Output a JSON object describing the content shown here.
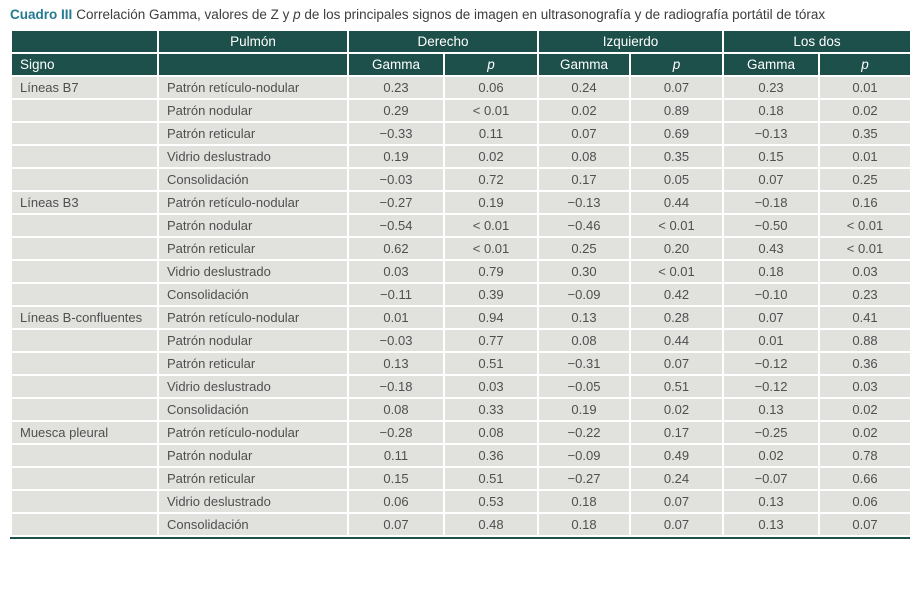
{
  "title": {
    "label": "Cuadro III",
    "pre": "Correlación Gamma, valores de Z y ",
    "italic": "p",
    "post": " de los principales signos de imagen en ultrasonografía y de radiografía portátil de tórax"
  },
  "colors": {
    "accent": "#247a91",
    "header_bg": "#1d504a",
    "row_bg": "#e1e2de",
    "body_text": "#4f4f4f"
  },
  "chart_data": {
    "type": "table",
    "header_top": [
      "",
      "Pulmón",
      "Derecho",
      "Izquierdo",
      "Los dos"
    ],
    "header_sub": [
      "Signo",
      "",
      "Gamma",
      "p",
      "Gamma",
      "p",
      "Gamma",
      "p"
    ],
    "groups": [
      {
        "sign": "Líneas B7",
        "rows": [
          {
            "pattern": "Patrón retículo-nodular",
            "values": [
              "0.23",
              "0.06",
              "0.24",
              "0.07",
              "0.23",
              "0.01"
            ]
          },
          {
            "pattern": "Patrón nodular",
            "values": [
              "0.29",
              "< 0.01",
              "0.02",
              "0.89",
              "0.18",
              "0.02"
            ]
          },
          {
            "pattern": "Patrón reticular",
            "values": [
              "−0.33",
              "0.11",
              "0.07",
              "0.69",
              "−0.13",
              "0.35"
            ]
          },
          {
            "pattern": "Vidrio deslustrado",
            "values": [
              "0.19",
              "0.02",
              "0.08",
              "0.35",
              "0.15",
              "0.01"
            ]
          },
          {
            "pattern": "Consolidación",
            "values": [
              "−0.03",
              "0.72",
              "0.17",
              "0.05",
              "0.07",
              "0.25"
            ]
          }
        ]
      },
      {
        "sign": "Líneas B3",
        "rows": [
          {
            "pattern": "Patrón retículo-nodular",
            "values": [
              "−0.27",
              "0.19",
              "−0.13",
              "0.44",
              "−0.18",
              "0.16"
            ]
          },
          {
            "pattern": "Patrón nodular",
            "values": [
              "−0.54",
              "< 0.01",
              "−0.46",
              "< 0.01",
              "−0.50",
              "< 0.01"
            ]
          },
          {
            "pattern": "Patrón reticular",
            "values": [
              "0.62",
              "< 0.01",
              "0.25",
              "0.20",
              "0.43",
              "< 0.01"
            ]
          },
          {
            "pattern": "Vidrio deslustrado",
            "values": [
              "0.03",
              "0.79",
              "0.30",
              "< 0.01",
              "0.18",
              "0.03"
            ]
          },
          {
            "pattern": "Consolidación",
            "values": [
              "−0.11",
              "0.39",
              "−0.09",
              "0.42",
              "−0.10",
              "0.23"
            ]
          }
        ]
      },
      {
        "sign": "Líneas B-confluentes",
        "rows": [
          {
            "pattern": "Patrón retículo-nodular",
            "values": [
              "0.01",
              "0.94",
              "0.13",
              "0.28",
              "0.07",
              "0.41"
            ]
          },
          {
            "pattern": "Patrón nodular",
            "values": [
              "−0.03",
              "0.77",
              "0.08",
              "0.44",
              "0.01",
              "0.88"
            ]
          },
          {
            "pattern": "Patrón reticular",
            "values": [
              "0.13",
              "0.51",
              "−0.31",
              "0.07",
              "−0.12",
              "0.36"
            ]
          },
          {
            "pattern": "Vidrio deslustrado",
            "values": [
              "−0.18",
              "0.03",
              "−0.05",
              "0.51",
              "−0.12",
              "0.03"
            ]
          },
          {
            "pattern": "Consolidación",
            "values": [
              "0.08",
              "0.33",
              "0.19",
              "0.02",
              "0.13",
              "0.02"
            ]
          }
        ]
      },
      {
        "sign": "Muesca pleural",
        "rows": [
          {
            "pattern": "Patrón retículo-nodular",
            "values": [
              "−0.28",
              "0.08",
              "−0.22",
              "0.17",
              "−0.25",
              "0.02"
            ]
          },
          {
            "pattern": "Patrón nodular",
            "values": [
              "0.11",
              "0.36",
              "−0.09",
              "0.49",
              "0.02",
              "0.78"
            ]
          },
          {
            "pattern": "Patrón reticular",
            "values": [
              "0.15",
              "0.51",
              "−0.27",
              "0.24",
              "−0.07",
              "0.66"
            ]
          },
          {
            "pattern": "Vidrio deslustrado",
            "values": [
              "0.06",
              "0.53",
              "0.18",
              "0.07",
              "0.13",
              "0.06"
            ]
          },
          {
            "pattern": "Consolidación",
            "values": [
              "0.07",
              "0.48",
              "0.18",
              "0.07",
              "0.13",
              "0.07"
            ]
          }
        ]
      }
    ]
  }
}
